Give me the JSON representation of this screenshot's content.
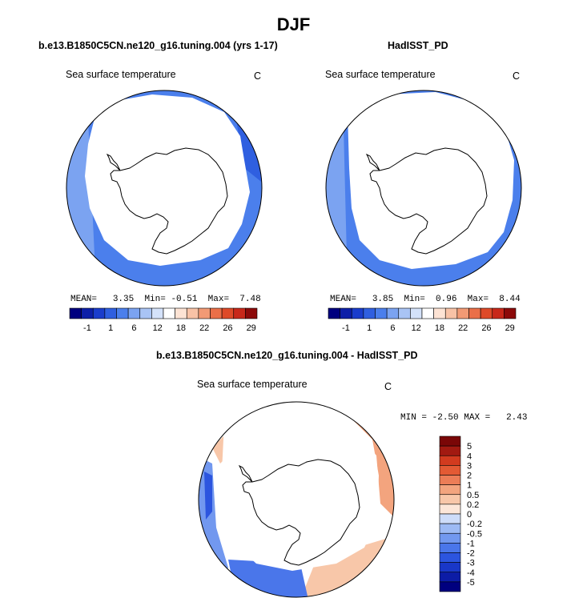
{
  "title": "DJF",
  "colors": {
    "abs_scale": [
      "#00007f",
      "#0d1fa8",
      "#1a3dcc",
      "#2f5fe0",
      "#4b7fec",
      "#7ba3f1",
      "#a9c4f5",
      "#d4e2fa",
      "#ffffff",
      "#fde3d4",
      "#f8c2a6",
      "#f29a75",
      "#ea6f48",
      "#de4a28",
      "#c8281a",
      "#8c0a0a"
    ],
    "diff_scale": [
      "#00007f",
      "#0c1ca6",
      "#1937c8",
      "#2c55df",
      "#4a76ea",
      "#7298ef",
      "#9dbaf4",
      "#cddcf9",
      "#fce6d8",
      "#f8c7a9",
      "#f3a47e",
      "#ec7d57",
      "#e35a34",
      "#d23b1f",
      "#a21a11",
      "#7a0707"
    ],
    "land": "#ffffff",
    "coast": "#000000"
  },
  "chart_data": [
    {
      "type": "heatmap",
      "projection": "south-polar",
      "subtitle": "b.e13.B1850C5CN.ne120_g16.tuning.004 (yrs 1-17)",
      "variable": "Sea surface temperature",
      "units": "C",
      "stats": {
        "mean_label": "MEAN=",
        "mean": "3.35",
        "min_label": "Min=",
        "min": "-0.51",
        "max_label": "Max=",
        "max": "7.48"
      },
      "colorbar_ticks": [
        "-1",
        "1",
        "6",
        "12",
        "18",
        "22",
        "26",
        "29"
      ]
    },
    {
      "type": "heatmap",
      "projection": "south-polar",
      "subtitle": "HadISST_PD",
      "variable": "Sea surface temperature",
      "units": "C",
      "stats": {
        "mean_label": "MEAN=",
        "mean": "3.85",
        "min_label": "Min=",
        "min": "0.96",
        "max_label": "Max=",
        "max": "8.44"
      },
      "colorbar_ticks": [
        "-1",
        "1",
        "6",
        "12",
        "18",
        "22",
        "26",
        "29"
      ]
    },
    {
      "type": "heatmap",
      "projection": "south-polar",
      "subtitle": "b.e13.B1850C5CN.ne120_g16.tuning.004 - HadISST_PD",
      "variable": "Sea surface temperature",
      "units": "C",
      "stats": {
        "min_label": "MIN =",
        "min": "-2.50",
        "max_label": "MAX =",
        "max": "2.43"
      },
      "colorbar_ticks": [
        "5",
        "4",
        "3",
        "2",
        "1",
        "0.5",
        "0.2",
        "0",
        "-0.2",
        "-0.5",
        "-1",
        "-2",
        "-3",
        "-4",
        "-5"
      ]
    }
  ]
}
